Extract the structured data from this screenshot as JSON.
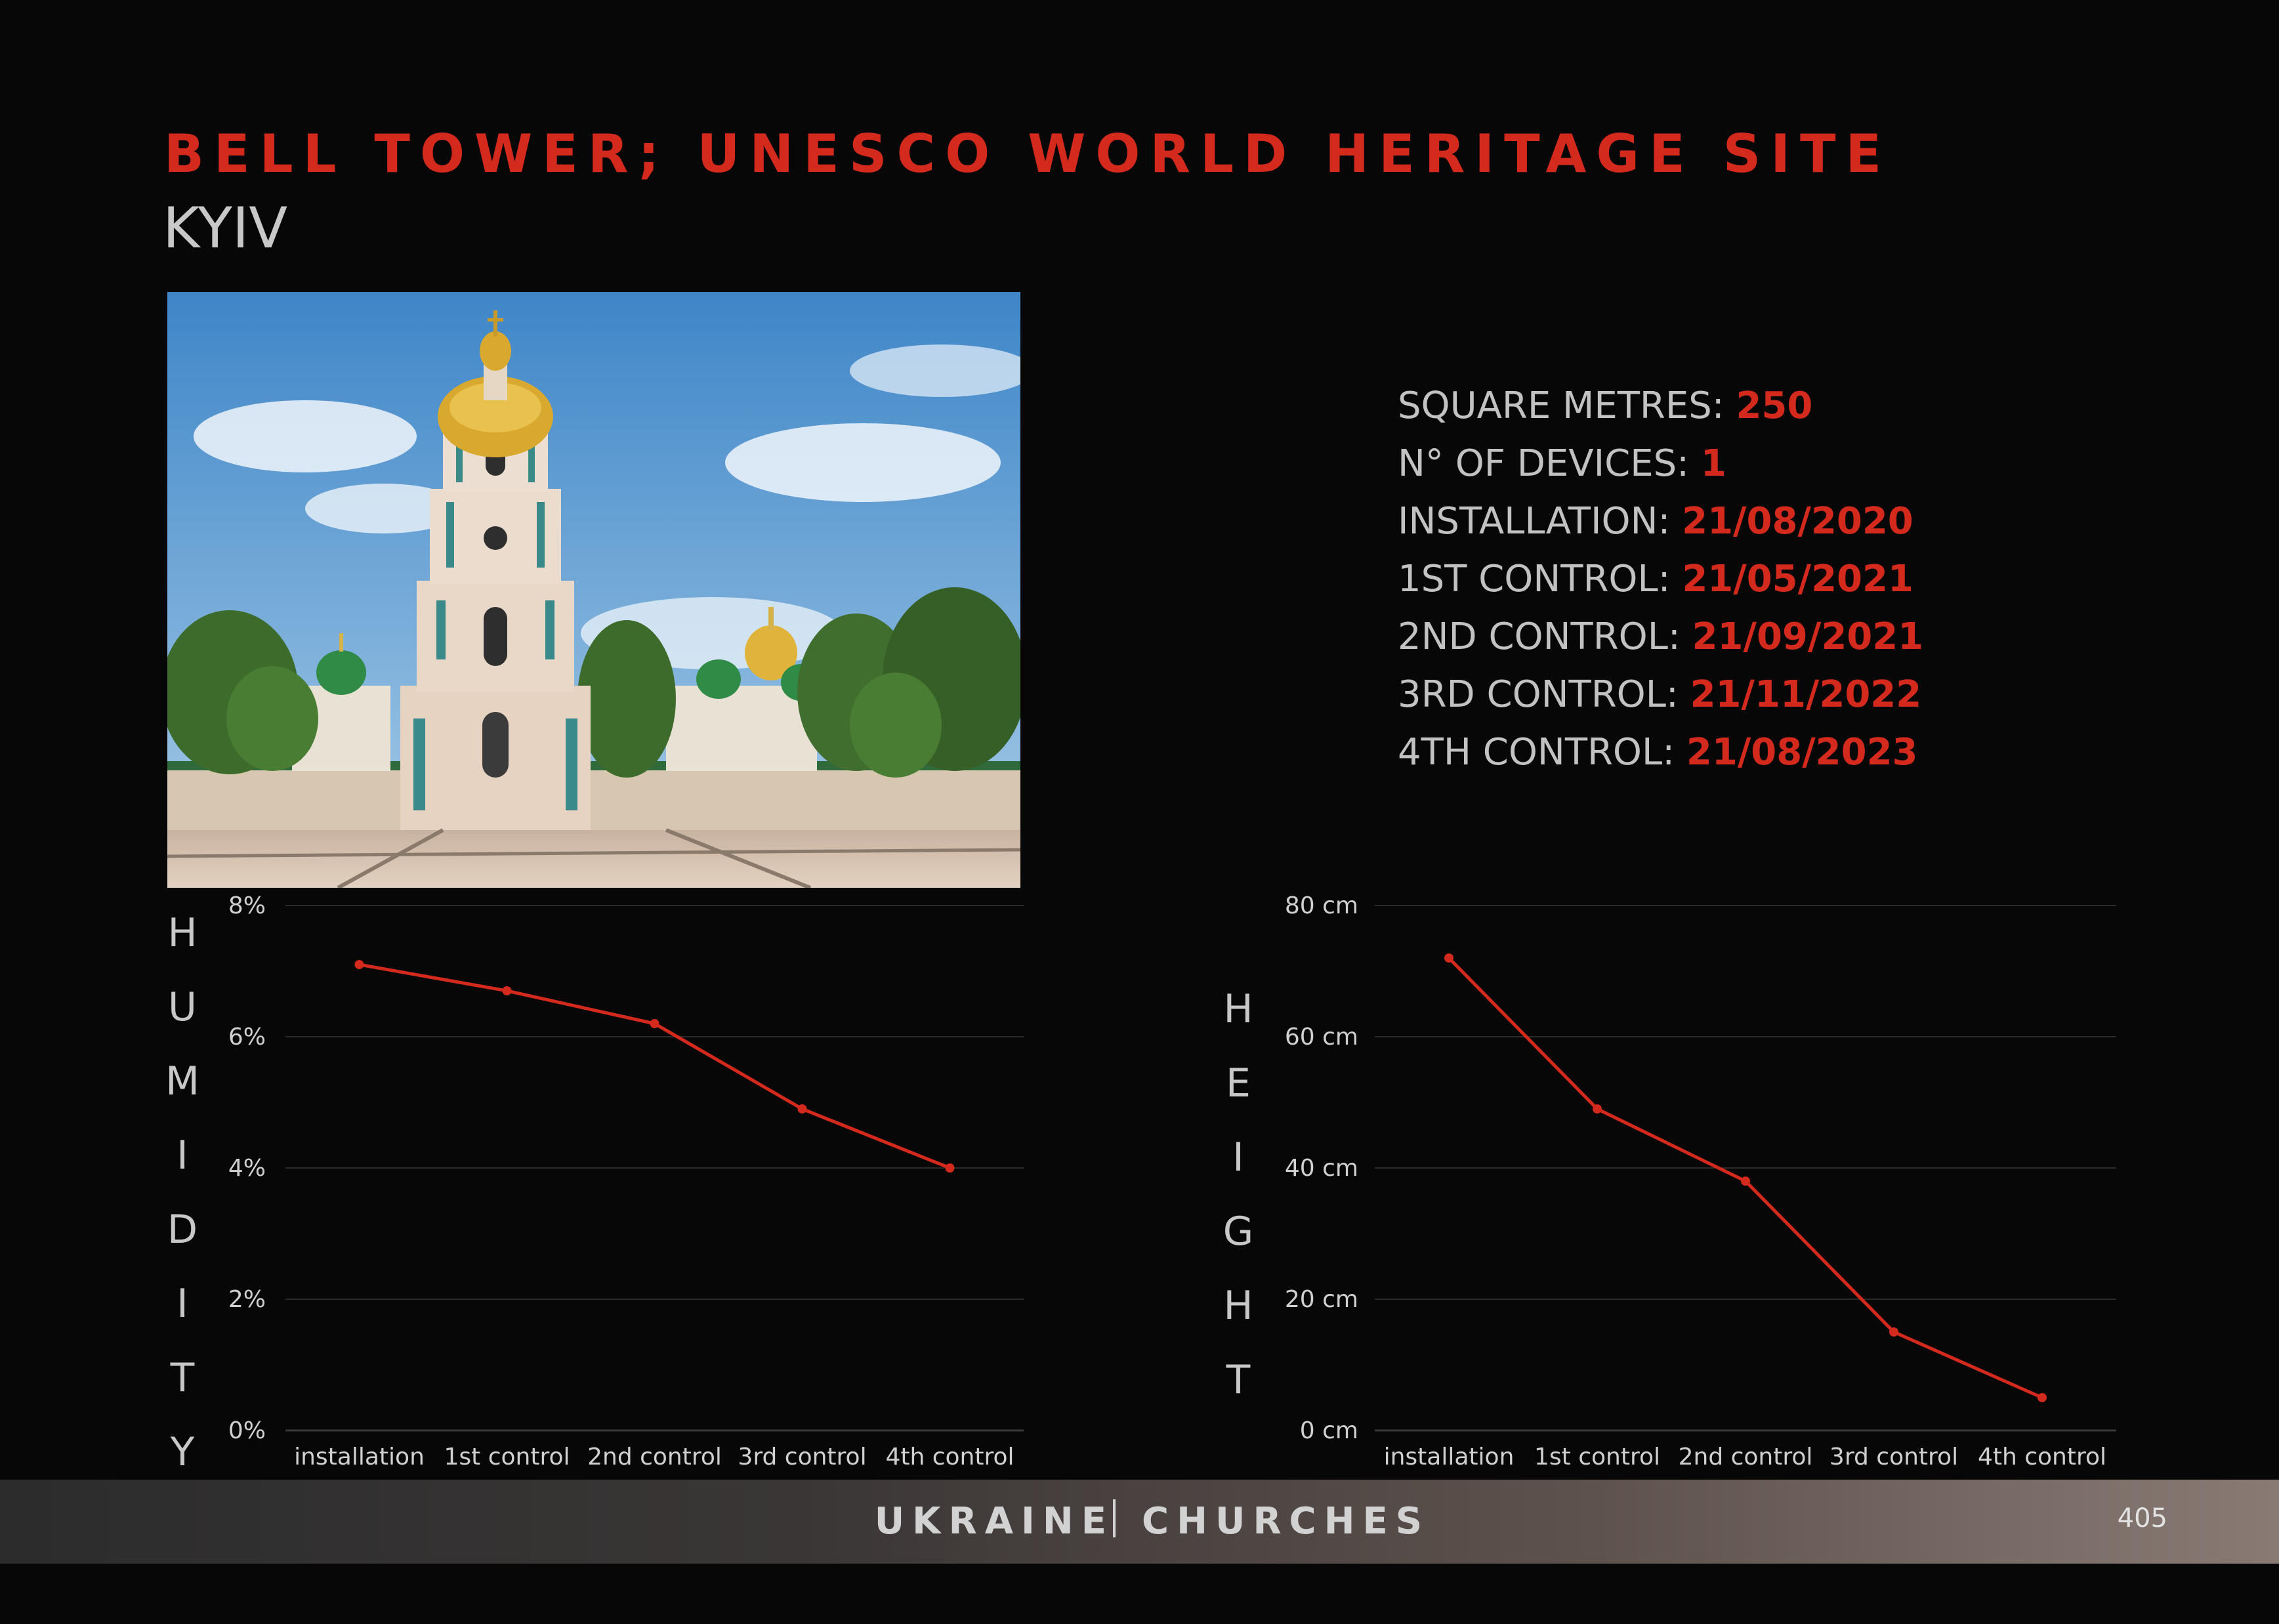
{
  "header": {
    "title": "BELL TOWER; UNESCO WORLD HERITAGE SITE",
    "subtitle": "KYIV"
  },
  "photo": {
    "icon": "bell-tower-photo"
  },
  "stats": [
    {
      "label": "SQUARE METRES: ",
      "value": "250"
    },
    {
      "label": "N° OF DEVICES: ",
      "value": "1"
    },
    {
      "label": "INSTALLATION: ",
      "value": "21/08/2020"
    },
    {
      "label": "1ST CONTROL: ",
      "value": "21/05/2021"
    },
    {
      "label": "2ND CONTROL: ",
      "value": "21/09/2021"
    },
    {
      "label": "3RD CONTROL: ",
      "value": "21/11/2022"
    },
    {
      "label": "4TH CONTROL: ",
      "value": "21/08/2023"
    }
  ],
  "chart_data": [
    {
      "type": "line",
      "title": "",
      "vertical_label": "HUMIDITY",
      "categories": [
        "installation",
        "1st control",
        "2nd control",
        "3rd control",
        "4th control"
      ],
      "series": [
        {
          "values": [
            7.1,
            6.7,
            6.2,
            4.9,
            4.0
          ]
        }
      ],
      "ylim": [
        0,
        8
      ],
      "yticks": [
        0,
        2,
        4,
        6,
        8
      ],
      "ytick_labels": [
        "0%",
        "2%",
        "4%",
        "6%",
        "8%"
      ],
      "grid": true,
      "color": "#d4291d"
    },
    {
      "type": "line",
      "title": "",
      "vertical_label": "HEIGHT",
      "categories": [
        "installation",
        "1st control",
        "2nd control",
        "3rd control",
        "4th control"
      ],
      "series": [
        {
          "values": [
            72,
            49,
            38,
            15,
            5
          ]
        }
      ],
      "ylim": [
        0,
        80
      ],
      "yticks": [
        0,
        20,
        40,
        60,
        80
      ],
      "ytick_labels": [
        "0 cm",
        "20 cm",
        "40 cm",
        "60 cm",
        "80 cm"
      ],
      "grid": true,
      "color": "#d4291d"
    }
  ],
  "footer": {
    "left": "UKRAINE",
    "right": "CHURCHES",
    "page_number": "405"
  }
}
